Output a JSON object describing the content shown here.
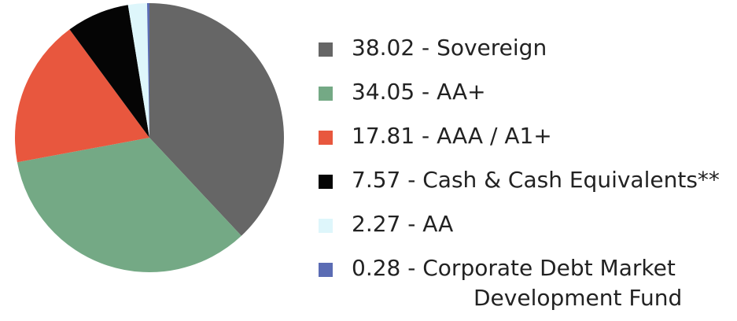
{
  "chart_data": {
    "type": "pie",
    "categories": [
      "Sovereign",
      "AA+",
      "AAA / A1+",
      "Cash & Cash Equivalents**",
      "AA",
      "Corporate Debt Market Development Fund"
    ],
    "values": [
      38.02,
      34.05,
      17.81,
      7.57,
      2.27,
      0.28
    ],
    "colors": [
      "#666666",
      "#74a985",
      "#e8573e",
      "#050505",
      "#def6fb",
      "#5b6cb4"
    ],
    "legend": [
      {
        "text": "38.02 - Sovereign",
        "color": "#666666"
      },
      {
        "text": "34.05 - AA+",
        "color": "#74a985"
      },
      {
        "text": "17.81 - AAA / A1+",
        "color": "#e8573e"
      },
      {
        "text": "7.57 - Cash & Cash Equivalents**",
        "color": "#050505"
      },
      {
        "text": "2.27 - AA",
        "color": "#def6fb"
      },
      {
        "text": "0.28 - Corporate Debt Market",
        "text2": "Development Fund",
        "color": "#5b6cb4"
      }
    ],
    "legend_position": "right"
  }
}
